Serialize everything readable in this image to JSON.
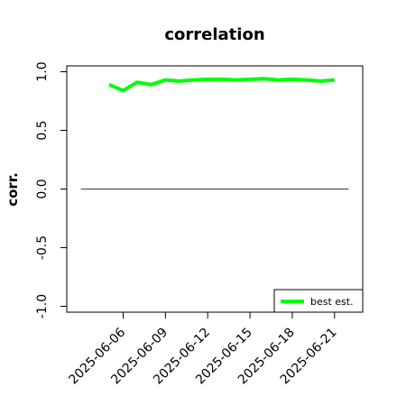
{
  "chart_data": {
    "type": "line",
    "title": "correlation",
    "xlabel": "",
    "ylabel": "corr.",
    "ylim": [
      -1.0,
      1.0
    ],
    "xlim": [
      "2025-06-02",
      "2025-06-23"
    ],
    "y_ticks": [
      "-1.0",
      "-0.5",
      "0.0",
      "0.5",
      "1.0"
    ],
    "x_ticks": [
      "2025-06-06",
      "2025-06-09",
      "2025-06-12",
      "2025-06-15",
      "2025-06-18",
      "2025-06-21"
    ],
    "highlighted_x_tick": "2025-06-12",
    "highlight_color": "#228B22",
    "grid": false,
    "legend_position": "bottom-right",
    "series": [
      {
        "name": "best est.",
        "color": "#00ff00",
        "x": [
          "2025-06-05",
          "2025-06-06",
          "2025-06-07",
          "2025-06-08",
          "2025-06-09",
          "2025-06-10",
          "2025-06-11",
          "2025-06-12",
          "2025-06-13",
          "2025-06-14",
          "2025-06-15",
          "2025-06-16",
          "2025-06-17",
          "2025-06-18",
          "2025-06-19",
          "2025-06-20",
          "2025-06-21"
        ],
        "y": [
          0.89,
          0.84,
          0.91,
          0.89,
          0.93,
          0.92,
          0.93,
          0.935,
          0.935,
          0.93,
          0.935,
          0.94,
          0.93,
          0.935,
          0.93,
          0.92,
          0.93
        ]
      }
    ],
    "reference_lines": [
      {
        "y": 0.0,
        "color": "#555555",
        "x_from": "2025-06-03",
        "x_to": "2025-06-22"
      }
    ]
  }
}
